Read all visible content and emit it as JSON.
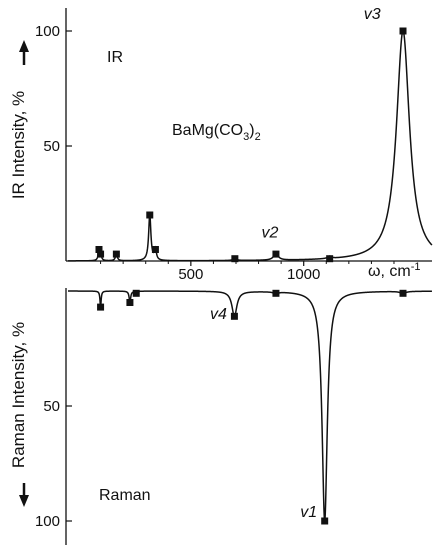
{
  "chart_data": [
    {
      "type": "line",
      "panel": "IR",
      "label": "IR",
      "ylabel": "IR Intensity, %",
      "compound": {
        "base": "BaMg(CO",
        "sub1": "3",
        "mid": ")",
        "sub2": "2"
      },
      "ylim": [
        0,
        100
      ],
      "xlim": [
        0,
        1400
      ],
      "yticks": [
        "50",
        "100"
      ],
      "xticks": [
        "500",
        "1000"
      ],
      "xlabel": "ω, cm",
      "xlabel_sup": "-1",
      "peak_labels": [
        {
          "text": "v2",
          "x": 877,
          "y": 5
        },
        {
          "text": "v3",
          "x": 1330,
          "y": 100
        }
      ],
      "peaks": [
        {
          "x": 93,
          "y": 5,
          "w": 4
        },
        {
          "x": 100,
          "y": 3,
          "w": 4
        },
        {
          "x": 170,
          "y": 3,
          "w": 5
        },
        {
          "x": 318,
          "y": 20,
          "w": 6
        },
        {
          "x": 343,
          "y": 5,
          "w": 5
        },
        {
          "x": 695,
          "y": 1,
          "w": 8
        },
        {
          "x": 877,
          "y": 3,
          "w": 12
        },
        {
          "x": 1115,
          "y": 1,
          "w": 10
        },
        {
          "x": 1440,
          "y": 100,
          "w": 35
        }
      ],
      "markers": [
        [
          93,
          5
        ],
        [
          100,
          3
        ],
        [
          170,
          3
        ],
        [
          318,
          20
        ],
        [
          343,
          5
        ],
        [
          695,
          1
        ],
        [
          877,
          3
        ],
        [
          1115,
          1
        ],
        [
          1440,
          100
        ]
      ],
      "grid": false
    },
    {
      "type": "line",
      "panel": "Raman",
      "label": "Raman",
      "ylabel": "Raman Intensity, %",
      "ylim": [
        0,
        100
      ],
      "xlim": [
        0,
        1400
      ],
      "yticks": [
        "50",
        "100"
      ],
      "peak_labels": [
        {
          "text": "v4",
          "x": 693,
          "y": 14
        },
        {
          "text": "v1",
          "x": 1093,
          "y": 100
        }
      ],
      "peaks": [
        {
          "x": 100,
          "y": 7,
          "w": 3
        },
        {
          "x": 230,
          "y": 5,
          "w": 4
        },
        {
          "x": 258,
          "y": 1,
          "w": 4
        },
        {
          "x": 693,
          "y": 11,
          "w": 13
        },
        {
          "x": 877,
          "y": 1,
          "w": 10
        },
        {
          "x": 1093,
          "y": 100,
          "w": 14
        },
        {
          "x": 1440,
          "y": 1,
          "w": 14
        }
      ],
      "markers": [
        [
          100,
          7
        ],
        [
          230,
          5
        ],
        [
          258,
          1
        ],
        [
          693,
          11
        ],
        [
          877,
          1
        ],
        [
          1093,
          100
        ],
        [
          1440,
          1
        ]
      ],
      "grid": false
    }
  ]
}
